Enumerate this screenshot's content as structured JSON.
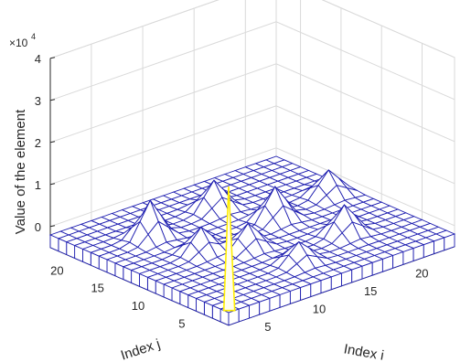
{
  "chart_data": {
    "type": "surface",
    "title": "",
    "xlabel": "Index i",
    "ylabel": "Index j",
    "zlabel": "Value of the element",
    "x_ticks": [
      "5",
      "10",
      "15",
      "20"
    ],
    "y_ticks": [
      "5",
      "10",
      "15",
      "20"
    ],
    "z_ticks": [
      "0",
      "1",
      "2",
      "3",
      "4"
    ],
    "z_exponent_base": "×10",
    "z_exponent_power": "4",
    "xlim": [
      1,
      23
    ],
    "ylim": [
      1,
      23
    ],
    "zlim": [
      -5000,
      40000
    ],
    "grid": true,
    "colors": {
      "mesh": "#1f1fb0",
      "spike": "#ffee00",
      "face": "#ffffff",
      "grid": "#d9d9d9",
      "axis": "#262626"
    },
    "base_value": -2000,
    "spike": {
      "i": 1,
      "j": 1,
      "value": 28000
    },
    "peaks": [
      {
        "i": 6,
        "j": 17,
        "value": 9000
      },
      {
        "i": 10,
        "j": 10,
        "value": 6000
      },
      {
        "i": 17,
        "j": 7,
        "value": 7000
      },
      {
        "i": 15,
        "j": 13,
        "value": 8000
      },
      {
        "i": 7,
        "j": 12,
        "value": 6000
      },
      {
        "i": 11,
        "j": 5,
        "value": 5000
      },
      {
        "i": 13,
        "j": 18,
        "value": 7000
      },
      {
        "i": 21,
        "j": 14,
        "value": 6000
      }
    ]
  }
}
